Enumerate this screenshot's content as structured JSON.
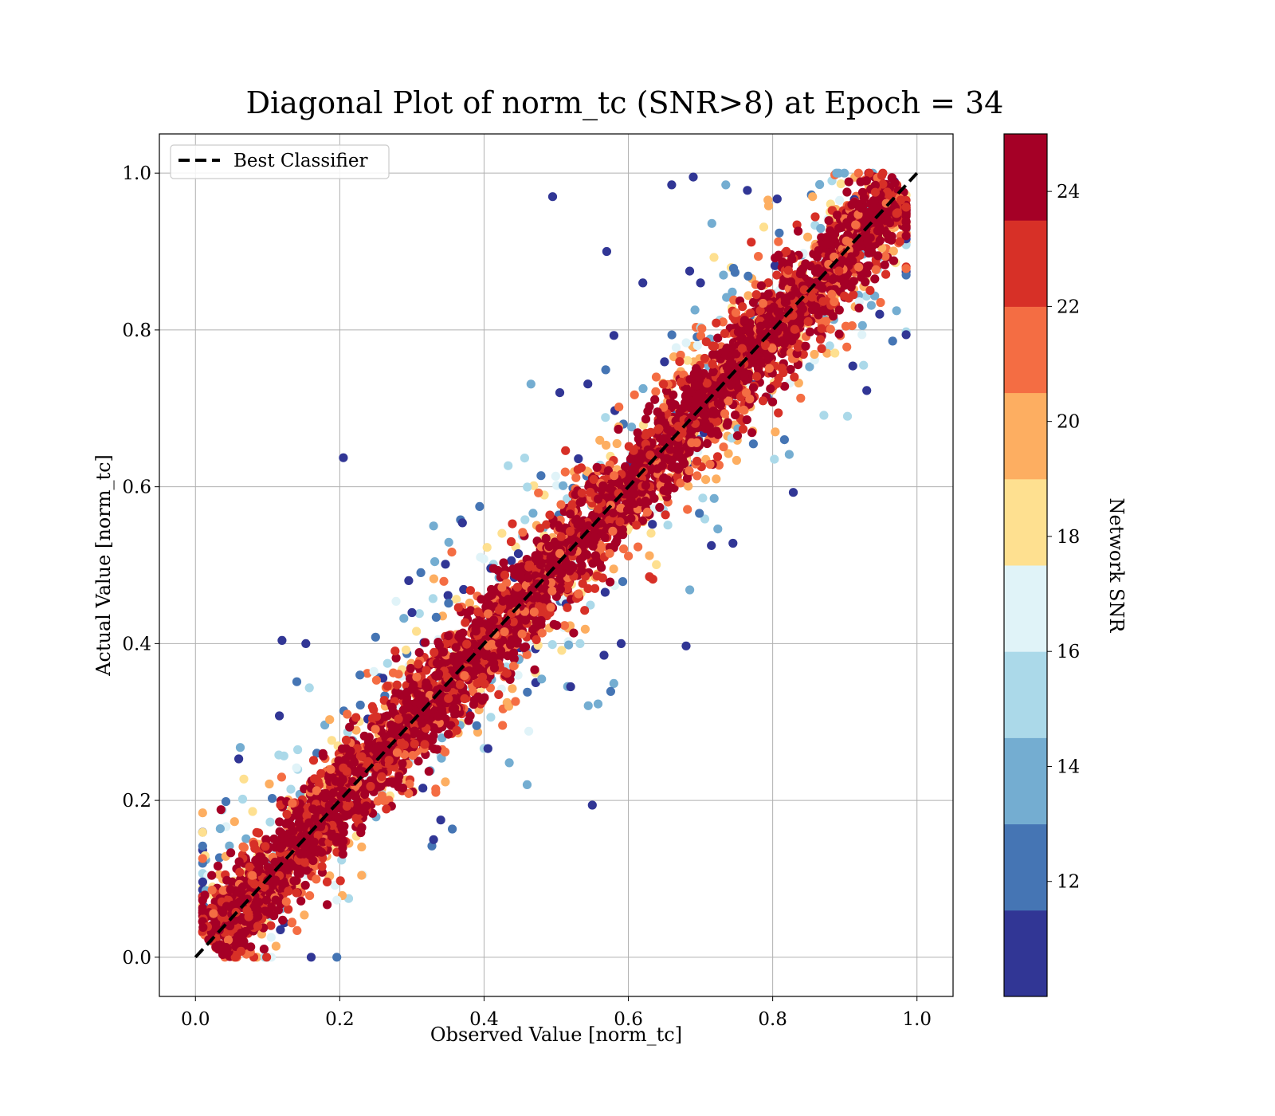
{
  "chart_data": {
    "type": "scatter",
    "title": "Diagonal Plot of norm_tc (SNR>8) at Epoch = 34",
    "xlabel": "Observed Value [norm_tc]",
    "ylabel": "Actual Value [norm_tc]",
    "xlim": [
      -0.05,
      1.05
    ],
    "ylim": [
      -0.05,
      1.05
    ],
    "x_ticks": [
      "0.0",
      "0.2",
      "0.4",
      "0.6",
      "0.8",
      "1.0"
    ],
    "y_ticks": [
      "0.0",
      "0.2",
      "0.4",
      "0.6",
      "0.8",
      "1.0"
    ],
    "grid": true,
    "legend": {
      "placement": "upper-left",
      "entries": [
        {
          "label": "Best Classifier",
          "style": "black dashed line"
        }
      ]
    },
    "reference_line": {
      "label": "Best Classifier",
      "from": [
        0,
        0
      ],
      "to": [
        1,
        1
      ],
      "color": "#000000",
      "style": "dashed"
    },
    "points_description": "Dense cloud of several thousand points clustered along the diagonal y = x, band width about ±0.07, colored by Network SNR",
    "outliers": [
      [
        0.495,
        0.97
      ],
      [
        0.57,
        0.9
      ],
      [
        0.66,
        0.985
      ],
      [
        0.69,
        0.995
      ],
      [
        0.735,
        0.985
      ],
      [
        0.765,
        0.978
      ],
      [
        0.205,
        0.637
      ],
      [
        0.62,
        0.86
      ],
      [
        0.58,
        0.793
      ],
      [
        0.465,
        0.731
      ],
      [
        0.505,
        0.72
      ],
      [
        0.68,
        0.397
      ],
      [
        0.59,
        0.4
      ],
      [
        0.55,
        0.194
      ],
      [
        0.558,
        0.323
      ],
      [
        0.12,
        0.404
      ],
      [
        0.153,
        0.4
      ],
      [
        0.745,
        0.528
      ],
      [
        0.715,
        0.525
      ],
      [
        0.33,
        0.55
      ],
      [
        0.37,
        0.554
      ],
      [
        0.06,
        0.253
      ],
      [
        0.685,
        0.875
      ],
      [
        0.7,
        0.86
      ],
      [
        0.435,
        0.248
      ],
      [
        0.33,
        0.15
      ],
      [
        0.34,
        0.175
      ],
      [
        0.52,
        0.345
      ]
    ],
    "colorbar": {
      "label": "Network SNR",
      "range": [
        10,
        25
      ],
      "tick_labels": [
        "12",
        "14",
        "16",
        "18",
        "20",
        "22",
        "24"
      ],
      "tick_values": [
        12,
        14,
        16,
        18,
        20,
        22,
        24
      ],
      "bins": [
        {
          "from": 10,
          "to": 11.5,
          "color": "#313695"
        },
        {
          "from": 11.5,
          "to": 13.0,
          "color": "#4575b4"
        },
        {
          "from": 13.0,
          "to": 14.5,
          "color": "#74add1"
        },
        {
          "from": 14.5,
          "to": 16.0,
          "color": "#abd9e9"
        },
        {
          "from": 16.0,
          "to": 17.5,
          "color": "#e0f3f8"
        },
        {
          "from": 17.5,
          "to": 19.0,
          "color": "#fee090"
        },
        {
          "from": 19.0,
          "to": 20.5,
          "color": "#fdae61"
        },
        {
          "from": 20.5,
          "to": 22.0,
          "color": "#f46d43"
        },
        {
          "from": 22.0,
          "to": 23.5,
          "color": "#d73027"
        },
        {
          "from": 23.5,
          "to": 25.0,
          "color": "#a50026"
        }
      ]
    }
  }
}
